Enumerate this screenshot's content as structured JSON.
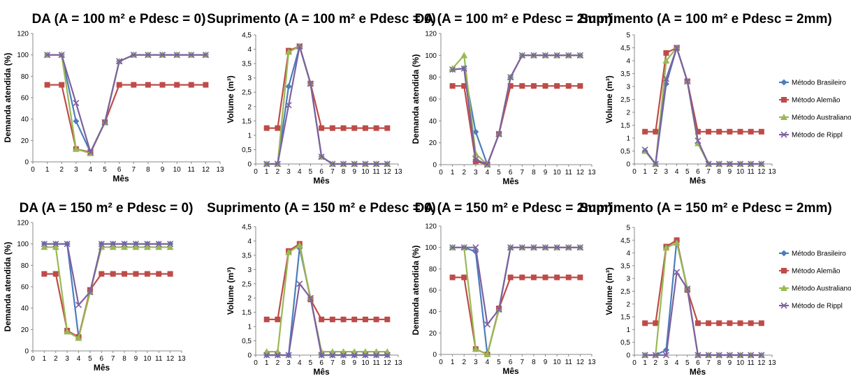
{
  "legend_entries": [
    "Método Brasileiro",
    "Método Alemão",
    "Método Australiano",
    "Método de Rippl"
  ],
  "colors": {
    "Método Brasileiro": "#4a7ebb",
    "Método Alemão": "#be4b48",
    "Método Australiano": "#98b954",
    "Método de Rippl": "#7d60a0"
  },
  "chart_data": [
    {
      "type": "line",
      "title": "DA (A = 100 m² e Pdesc = 0)",
      "xlabel": "Mês",
      "ylabel": "Demanda atendida (%)",
      "xlim": [
        0,
        13
      ],
      "ylim": [
        0,
        120
      ],
      "yticks": [
        "0",
        "20",
        "40",
        "60",
        "80",
        "100",
        "120"
      ],
      "x": [
        1,
        2,
        3,
        4,
        5,
        6,
        7,
        8,
        9,
        10,
        11,
        12
      ],
      "series": [
        {
          "name": "Método Brasileiro",
          "values": [
            100,
            100,
            38,
            9,
            37,
            94,
            100,
            100,
            100,
            100,
            100,
            100
          ]
        },
        {
          "name": "Método Alemão",
          "values": [
            72,
            72,
            12,
            9,
            37,
            72,
            72,
            72,
            72,
            72,
            72,
            72
          ]
        },
        {
          "name": "Método Australiano",
          "values": [
            100,
            100,
            12,
            8,
            37,
            94,
            100,
            100,
            100,
            100,
            100,
            100
          ]
        },
        {
          "name": "Método de Rippl",
          "values": [
            100,
            100,
            55,
            9,
            37,
            94,
            100,
            100,
            100,
            100,
            100,
            100
          ]
        }
      ]
    },
    {
      "type": "line",
      "title": "Suprimento (A = 100 m² e Pdesc = 0)",
      "xlabel": "Mês",
      "ylabel": "Volume (m³)",
      "xlim": [
        0,
        13
      ],
      "ylim": [
        0,
        4.5
      ],
      "yticks": [
        "0",
        "0,5",
        "1",
        "1,5",
        "2",
        "2,5",
        "3",
        "3,5",
        "4",
        "4,5"
      ],
      "x": [
        1,
        2,
        3,
        4,
        5,
        6,
        7,
        8,
        9,
        10,
        11,
        12
      ],
      "series": [
        {
          "name": "Método Brasileiro",
          "values": [
            0,
            0,
            2.7,
            4.1,
            2.8,
            0.25,
            0,
            0,
            0,
            0,
            0,
            0
          ]
        },
        {
          "name": "Método Alemão",
          "values": [
            1.25,
            1.25,
            3.95,
            4.1,
            2.8,
            1.25,
            1.25,
            1.25,
            1.25,
            1.25,
            1.25,
            1.25
          ]
        },
        {
          "name": "Método Australiano",
          "values": [
            0,
            0,
            3.9,
            4.1,
            2.8,
            0.25,
            0,
            0,
            0,
            0,
            0,
            0
          ]
        },
        {
          "name": "Método de Rippl",
          "values": [
            0,
            0,
            2.05,
            4.1,
            2.8,
            0.25,
            0,
            0,
            0,
            0,
            0,
            0
          ]
        }
      ]
    },
    {
      "type": "line",
      "title": "DA (A = 100 m² e Pdesc = 2mm)",
      "xlabel": "Mês",
      "ylabel": "Demanda atendida (%)",
      "xlim": [
        0,
        13
      ],
      "ylim": [
        0,
        120
      ],
      "yticks": [
        "0",
        "20",
        "40",
        "60",
        "80",
        "100",
        "120"
      ],
      "x": [
        1,
        2,
        3,
        4,
        5,
        6,
        7,
        8,
        9,
        10,
        11,
        12
      ],
      "series": [
        {
          "name": "Método Brasileiro",
          "values": [
            87,
            88,
            30,
            0,
            28,
            80,
            100,
            100,
            100,
            100,
            100,
            100
          ]
        },
        {
          "name": "Método Alemão",
          "values": [
            72,
            72,
            3,
            0,
            28,
            72,
            72,
            72,
            72,
            72,
            72,
            72
          ]
        },
        {
          "name": "Método Australiano",
          "values": [
            88,
            100,
            10,
            0,
            28,
            80,
            100,
            100,
            100,
            100,
            100,
            100
          ]
        },
        {
          "name": "Método de Rippl",
          "values": [
            87,
            88,
            5,
            0,
            28,
            80,
            100,
            100,
            100,
            100,
            100,
            100
          ]
        }
      ]
    },
    {
      "type": "line",
      "title": "Suprimento (A = 100 m² e Pdesc = 2mm)",
      "xlabel": "Mês",
      "ylabel": "Volume (m³)",
      "xlim": [
        0,
        13
      ],
      "ylim": [
        0,
        5
      ],
      "yticks": [
        "0",
        "0,5",
        "1",
        "1,5",
        "2",
        "2,5",
        "3",
        "3,5",
        "4",
        "4,5",
        "5"
      ],
      "x": [
        1,
        2,
        3,
        4,
        5,
        6,
        7,
        8,
        9,
        10,
        11,
        12
      ],
      "series": [
        {
          "name": "Método Brasileiro",
          "values": [
            0.5,
            0,
            3.1,
            4.5,
            3.2,
            0.8,
            0,
            0,
            0,
            0,
            0,
            0
          ]
        },
        {
          "name": "Método Alemão",
          "values": [
            1.25,
            1.25,
            4.3,
            4.5,
            3.2,
            1.25,
            1.25,
            1.25,
            1.25,
            1.25,
            1.25,
            1.25
          ]
        },
        {
          "name": "Método Australiano",
          "values": [
            0.5,
            0,
            4.0,
            4.5,
            3.2,
            0.8,
            0,
            0,
            0,
            0,
            0,
            0
          ]
        },
        {
          "name": "Método de Rippl",
          "values": [
            0.55,
            0,
            3.3,
            4.5,
            3.2,
            0.9,
            0,
            0,
            0,
            0,
            0,
            0
          ]
        }
      ]
    },
    {
      "type": "line",
      "title": "DA (A = 150 m² e Pdesc = 0)",
      "xlabel": "Mês",
      "ylabel": "Demanda atendida (%)",
      "xlim": [
        0,
        13
      ],
      "ylim": [
        0,
        120
      ],
      "yticks": [
        "0",
        "20",
        "40",
        "60",
        "80",
        "100",
        "120"
      ],
      "x": [
        1,
        2,
        3,
        4,
        5,
        6,
        7,
        8,
        9,
        10,
        11,
        12
      ],
      "series": [
        {
          "name": "Método Brasileiro",
          "values": [
            100,
            100,
            100,
            13,
            55,
            100,
            100,
            100,
            100,
            100,
            100,
            100
          ]
        },
        {
          "name": "Método Alemão",
          "values": [
            72,
            72,
            19,
            13,
            57,
            72,
            72,
            72,
            72,
            72,
            72,
            72
          ]
        },
        {
          "name": "Método Australiano",
          "values": [
            97,
            97,
            18,
            12,
            55,
            97,
            97,
            97,
            97,
            97,
            97,
            97
          ]
        },
        {
          "name": "Método de Rippl",
          "values": [
            100,
            100,
            100,
            43,
            55,
            100,
            100,
            100,
            100,
            100,
            100,
            100
          ]
        }
      ]
    },
    {
      "type": "line",
      "title": "Suprimento (A = 150 m² e Pdesc = 0)",
      "xlabel": "Mês",
      "ylabel": "Volume (m³)",
      "xlim": [
        0,
        13
      ],
      "ylim": [
        0,
        4.5
      ],
      "yticks": [
        "0",
        "0,5",
        "1",
        "1,5",
        "2",
        "2,5",
        "3",
        "3,5",
        "4",
        "4,5"
      ],
      "x": [
        1,
        2,
        3,
        4,
        5,
        6,
        7,
        8,
        9,
        10,
        11,
        12
      ],
      "series": [
        {
          "name": "Método Brasileiro",
          "values": [
            0,
            0,
            0,
            3.75,
            2.0,
            0,
            0,
            0,
            0,
            0,
            0,
            0
          ]
        },
        {
          "name": "Método Alemão",
          "values": [
            1.25,
            1.25,
            3.65,
            3.9,
            1.95,
            1.25,
            1.25,
            1.25,
            1.25,
            1.25,
            1.25,
            1.25
          ]
        },
        {
          "name": "Método Australiano",
          "values": [
            0.12,
            0.12,
            3.6,
            3.85,
            2.0,
            0.12,
            0.12,
            0.12,
            0.12,
            0.12,
            0.12,
            0.12
          ]
        },
        {
          "name": "Método de Rippl",
          "values": [
            0,
            0,
            0,
            2.5,
            2.0,
            0,
            0,
            0,
            0,
            0,
            0,
            0
          ]
        }
      ]
    },
    {
      "type": "line",
      "title": "DA (A = 150 m² e Pdesc = 2mm)",
      "xlabel": "Mês",
      "ylabel": "Demanda atendida (%)",
      "xlim": [
        0,
        13
      ],
      "ylim": [
        0,
        120
      ],
      "yticks": [
        "0",
        "20",
        "40",
        "60",
        "80",
        "100",
        "120"
      ],
      "x": [
        1,
        2,
        3,
        4,
        5,
        6,
        7,
        8,
        9,
        10,
        11,
        12
      ],
      "series": [
        {
          "name": "Método Brasileiro",
          "values": [
            100,
            100,
            96,
            0,
            42,
            100,
            100,
            100,
            100,
            100,
            100,
            100
          ]
        },
        {
          "name": "Método Alemão",
          "values": [
            72,
            72,
            5,
            0,
            43,
            72,
            72,
            72,
            72,
            72,
            72,
            72
          ]
        },
        {
          "name": "Método Australiano",
          "values": [
            100,
            100,
            5,
            0,
            42,
            100,
            100,
            100,
            100,
            100,
            100,
            100
          ]
        },
        {
          "name": "Método de Rippl",
          "values": [
            100,
            100,
            100,
            28,
            42,
            100,
            100,
            100,
            100,
            100,
            100,
            100
          ]
        }
      ]
    },
    {
      "type": "line",
      "title": "Suprimento (A = 150 m² e Pdesc = 2mm)",
      "xlabel": "Mês",
      "ylabel": "Volume (m³)",
      "xlim": [
        0,
        13
      ],
      "ylim": [
        0,
        5
      ],
      "yticks": [
        "0",
        "0,5",
        "1",
        "1,5",
        "2",
        "2,5",
        "3",
        "3,5",
        "4",
        "4,5",
        "5"
      ],
      "x": [
        1,
        2,
        3,
        4,
        5,
        6,
        7,
        8,
        9,
        10,
        11,
        12
      ],
      "series": [
        {
          "name": "Método Brasileiro",
          "values": [
            0,
            0,
            0.2,
            4.5,
            2.6,
            0,
            0,
            0,
            0,
            0,
            0,
            0
          ]
        },
        {
          "name": "Método Alemão",
          "values": [
            1.25,
            1.25,
            4.25,
            4.5,
            2.55,
            1.25,
            1.25,
            1.25,
            1.25,
            1.25,
            1.25,
            1.25
          ]
        },
        {
          "name": "Método Australiano",
          "values": [
            0,
            0,
            4.2,
            4.4,
            2.6,
            0,
            0,
            0,
            0,
            0,
            0,
            0
          ]
        },
        {
          "name": "Método de Rippl",
          "values": [
            0,
            0,
            0,
            3.25,
            2.6,
            0,
            0,
            0,
            0,
            0,
            0,
            0
          ]
        }
      ]
    }
  ]
}
